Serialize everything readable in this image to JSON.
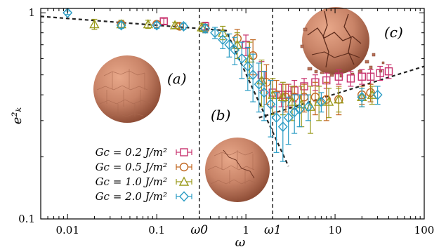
{
  "chart_data": {
    "type": "scatter",
    "xlabel": "ω",
    "ylabel": "e²ₖ",
    "x_scale": "log",
    "y_scale": "log",
    "xlim": [
      0.005,
      100
    ],
    "ylim": [
      0.1,
      1.05
    ],
    "x_ticks": [
      {
        "value": 0.01,
        "label": "0.01"
      },
      {
        "value": 0.1,
        "label": "0.1"
      },
      {
        "value": 1,
        "label": "1"
      },
      {
        "value": 10,
        "label": "10"
      },
      {
        "value": 100,
        "label": "100"
      }
    ],
    "y_ticks": [
      {
        "value": 0.1,
        "label": "0.1"
      },
      {
        "value": 1,
        "label": "1"
      }
    ],
    "vlines": [
      {
        "x": 0.3,
        "label": "ω0"
      },
      {
        "x": 2.0,
        "label": "ω1"
      }
    ],
    "guide_lines": [
      {
        "points": [
          [
            0.005,
            0.96
          ],
          [
            0.6,
            0.82
          ],
          [
            3.0,
            0.18
          ]
        ]
      },
      {
        "points": [
          [
            1.4,
            0.31
          ],
          [
            100,
            0.55
          ]
        ]
      }
    ],
    "annotations": [
      "(a)",
      "(b)",
      "(c)"
    ],
    "colors": {
      "s1": "#c8326e",
      "s2": "#c0661f",
      "s3": "#9a9a1c",
      "s4": "#2b9cc4",
      "sphere": "#c98468"
    },
    "series": [
      {
        "name": "Gc = 0.2 J/m²",
        "marker": "square",
        "points": [
          [
            0.12,
            0.91,
            0.03
          ],
          [
            0.35,
            0.86,
            0.04
          ],
          [
            1.0,
            0.7,
            0.08
          ],
          [
            1.5,
            0.5,
            0.08
          ],
          [
            2.0,
            0.41,
            0.06
          ],
          [
            2.5,
            0.4,
            0.05
          ],
          [
            3.0,
            0.4,
            0.05
          ],
          [
            3.5,
            0.42,
            0.05
          ],
          [
            4.5,
            0.44,
            0.04
          ],
          [
            6.0,
            0.46,
            0.04
          ],
          [
            8.0,
            0.47,
            0.04
          ],
          [
            11,
            0.49,
            0.04
          ],
          [
            15,
            0.48,
            0.04
          ],
          [
            20,
            0.49,
            0.04
          ],
          [
            25,
            0.49,
            0.04
          ],
          [
            32,
            0.51,
            0.04
          ],
          [
            40,
            0.52,
            0.04
          ]
        ]
      },
      {
        "name": "Gc = 0.5 J/m²",
        "marker": "circle",
        "points": [
          [
            0.04,
            0.88,
            0.03
          ],
          [
            0.1,
            0.88,
            0.03
          ],
          [
            0.18,
            0.86,
            0.03
          ],
          [
            0.35,
            0.84,
            0.04
          ],
          [
            0.8,
            0.75,
            0.08
          ],
          [
            1.2,
            0.62,
            0.12
          ],
          [
            1.7,
            0.46,
            0.1
          ],
          [
            2.2,
            0.4,
            0.07
          ],
          [
            2.8,
            0.39,
            0.06
          ],
          [
            3.5,
            0.39,
            0.05
          ],
          [
            4.5,
            0.39,
            0.06
          ],
          [
            6.0,
            0.39,
            0.07
          ],
          [
            8.0,
            0.38,
            0.08
          ],
          [
            11,
            0.38,
            0.06
          ],
          [
            20,
            0.4,
            0.04
          ],
          [
            25,
            0.41,
            0.04
          ]
        ]
      },
      {
        "name": "Gc = 1.0 J/m²",
        "marker": "triangle",
        "points": [
          [
            0.02,
            0.88,
            0.05
          ],
          [
            0.04,
            0.88,
            0.04
          ],
          [
            0.08,
            0.88,
            0.04
          ],
          [
            0.16,
            0.87,
            0.03
          ],
          [
            0.32,
            0.85,
            0.04
          ],
          [
            0.55,
            0.8,
            0.06
          ],
          [
            0.8,
            0.7,
            0.1
          ],
          [
            1.1,
            0.6,
            0.12
          ],
          [
            1.5,
            0.47,
            0.12
          ],
          [
            2.0,
            0.4,
            0.08
          ],
          [
            2.6,
            0.39,
            0.07
          ],
          [
            3.3,
            0.37,
            0.07
          ],
          [
            4.2,
            0.36,
            0.08
          ],
          [
            5.3,
            0.35,
            0.09
          ],
          [
            6.6,
            0.37,
            0.07
          ],
          [
            8.5,
            0.37,
            0.06
          ],
          [
            11,
            0.38,
            0.05
          ],
          [
            20,
            0.39,
            0.04
          ],
          [
            26,
            0.4,
            0.04
          ]
        ]
      },
      {
        "name": "Gc = 2.0 J/m²",
        "marker": "diamond",
        "points": [
          [
            0.01,
            1.0,
            0.02
          ],
          [
            0.04,
            0.87,
            0.03
          ],
          [
            0.1,
            0.87,
            0.03
          ],
          [
            0.2,
            0.86,
            0.03
          ],
          [
            0.35,
            0.84,
            0.04
          ],
          [
            0.45,
            0.8,
            0.05
          ],
          [
            0.55,
            0.74,
            0.07
          ],
          [
            0.65,
            0.7,
            0.09
          ],
          [
            0.75,
            0.66,
            0.1
          ],
          [
            0.9,
            0.6,
            0.12
          ],
          [
            1.05,
            0.55,
            0.13
          ],
          [
            1.2,
            0.5,
            0.13
          ],
          [
            1.4,
            0.45,
            0.12
          ],
          [
            1.6,
            0.41,
            0.11
          ],
          [
            1.9,
            0.36,
            0.11
          ],
          [
            2.2,
            0.31,
            0.1
          ],
          [
            2.6,
            0.28,
            0.09
          ],
          [
            3.0,
            0.31,
            0.08
          ],
          [
            3.5,
            0.33,
            0.07
          ],
          [
            4.0,
            0.34,
            0.06
          ],
          [
            5.0,
            0.35,
            0.05
          ],
          [
            7.0,
            0.37,
            0.04
          ],
          [
            20,
            0.39,
            0.04
          ],
          [
            30,
            0.4,
            0.04
          ]
        ]
      }
    ]
  }
}
